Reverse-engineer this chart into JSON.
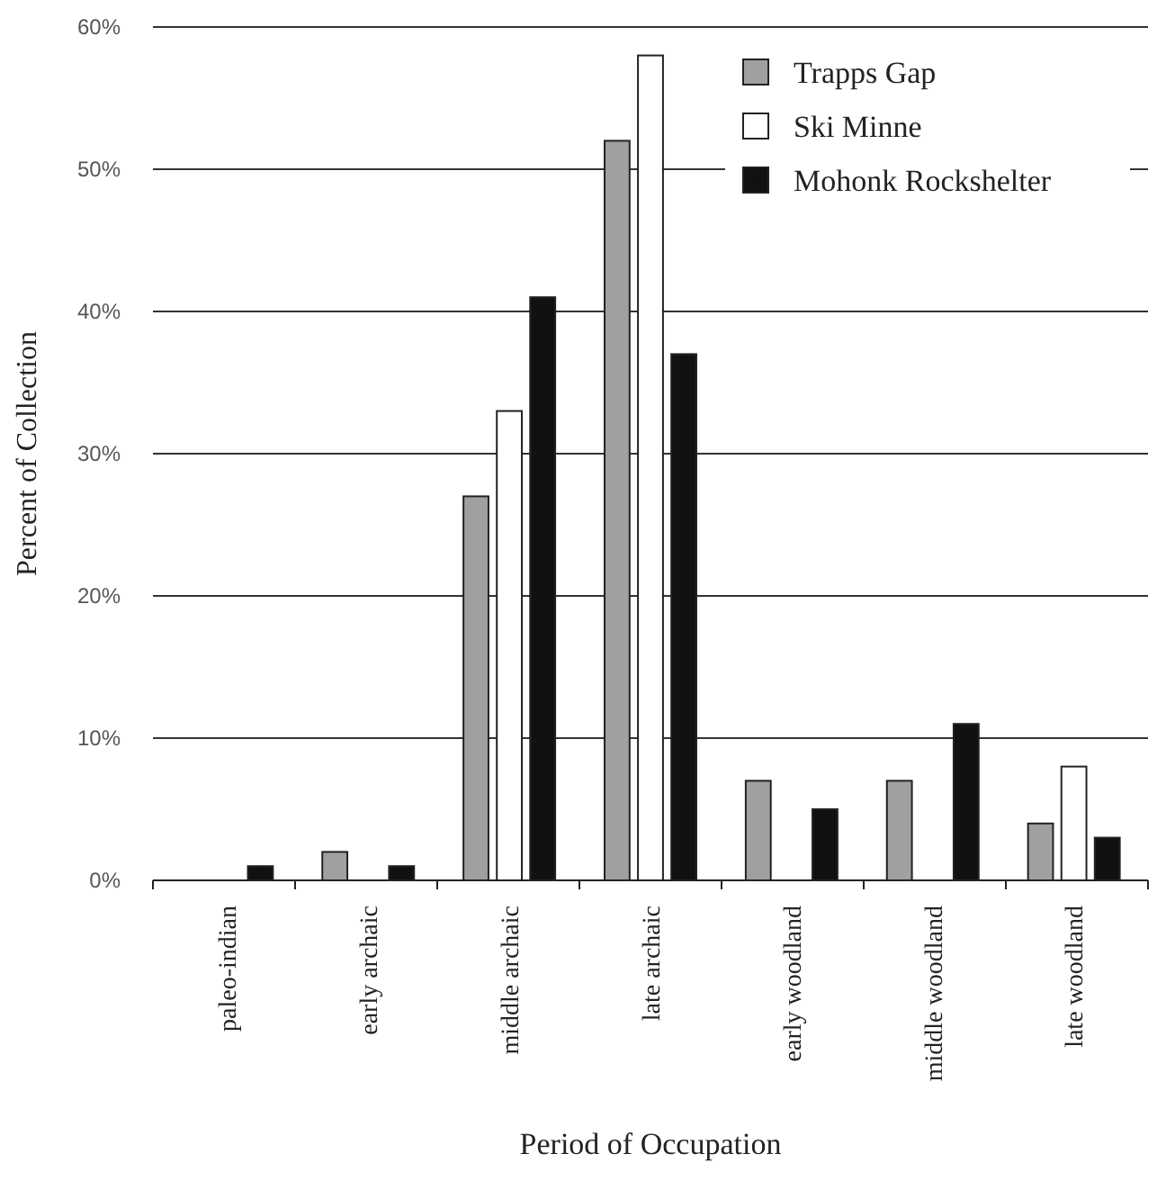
{
  "chart_data": {
    "type": "bar",
    "xlabel": "Period of Occupation",
    "ylabel": "Percent of Collection",
    "categories": [
      "paleo-indian",
      "early archaic",
      "middle archaic",
      "late archaic",
      "early woodland",
      "middle woodland",
      "late woodland"
    ],
    "series": [
      {
        "name": "Trapps Gap",
        "color": "#a0a0a0",
        "values": [
          0,
          2,
          27,
          52,
          7,
          7,
          4
        ]
      },
      {
        "name": "Ski Minne",
        "color": "#ffffff",
        "values": [
          0,
          0,
          33,
          58,
          0,
          0,
          8
        ]
      },
      {
        "name": "Mohonk Rockshelter",
        "color": "#111111",
        "values": [
          1,
          1,
          41,
          37,
          5,
          11,
          3
        ]
      }
    ],
    "ylim": [
      0,
      60
    ],
    "yticks": [
      {
        "value": 0,
        "label": "0%"
      },
      {
        "value": 10,
        "label": "10%"
      },
      {
        "value": 20,
        "label": "20%"
      },
      {
        "value": 30,
        "label": "30%"
      },
      {
        "value": 40,
        "label": "40%"
      },
      {
        "value": 50,
        "label": "50%"
      },
      {
        "value": 60,
        "label": "60%"
      }
    ],
    "grid": "y",
    "legend": "top right"
  }
}
